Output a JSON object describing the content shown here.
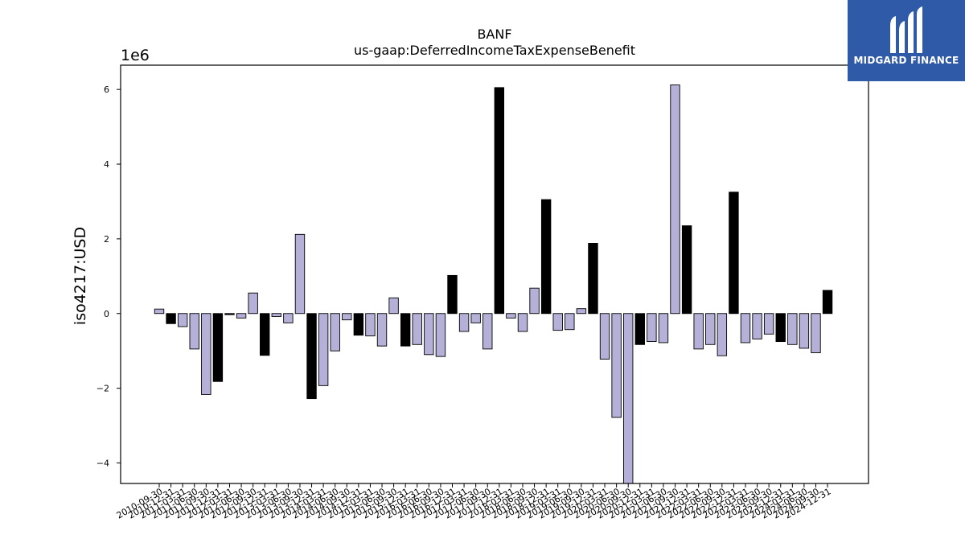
{
  "logo": {
    "text": "MIDGARD FINANCE"
  },
  "chart_data": {
    "type": "bar",
    "title": "BANF",
    "subtitle": "us-gaap:DeferredIncomeTaxExpenseBenefit",
    "ylabel": "iso4217:USD",
    "xlabel": "",
    "y_multiplier_label": "1e6",
    "ylim": [
      -4.55,
      6.65
    ],
    "yticks": [
      -4,
      -2,
      0,
      2,
      4,
      6
    ],
    "ytick_labels": [
      "−4",
      "−2",
      "0",
      "2",
      "4",
      "6"
    ],
    "colors": {
      "quarterly": "#b4b0d8",
      "annual": "#000000",
      "edge": "#000000"
    },
    "grid": false,
    "categories": [
      "2010-09-30",
      "2010-12-31",
      "2011-03-31",
      "2011-06-30",
      "2011-09-30",
      "2011-12-31",
      "2012-03-31",
      "2012-06-30",
      "2012-09-30",
      "2012-12-31",
      "2013-03-31",
      "2013-06-30",
      "2013-09-30",
      "2013-12-31",
      "2014-03-31",
      "2014-06-30",
      "2014-09-30",
      "2014-12-31",
      "2015-03-31",
      "2015-06-30",
      "2015-09-30",
      "2015-12-31",
      "2016-03-31",
      "2016-06-30",
      "2016-09-30",
      "2016-12-31",
      "2017-03-31",
      "2017-06-30",
      "2017-09-30",
      "2017-12-31",
      "2018-03-31",
      "2018-06-30",
      "2018-09-30",
      "2018-12-31",
      "2019-03-31",
      "2019-06-30",
      "2019-09-30",
      "2019-12-31",
      "2020-03-31",
      "2020-06-30",
      "2020-09-30",
      "2020-12-31",
      "2021-03-31",
      "2021-06-30",
      "2021-09-30",
      "2021-12-31",
      "2022-03-31",
      "2022-06-30",
      "2022-09-30",
      "2022-12-31",
      "2023-03-31",
      "2023-06-30",
      "2023-09-30",
      "2023-12-31",
      "2024-03-31",
      "2024-06-30",
      "2024-09-30",
      "2024-12-31"
    ],
    "values": [
      0.12,
      -0.27,
      -0.35,
      -0.95,
      -2.17,
      -1.82,
      -0.03,
      -0.12,
      0.55,
      -1.12,
      -0.08,
      -0.25,
      2.12,
      -2.28,
      -1.93,
      -1.0,
      -0.17,
      -0.58,
      -0.6,
      -0.87,
      0.42,
      -0.87,
      -0.83,
      -1.1,
      -1.15,
      1.02,
      -0.48,
      -0.25,
      -0.95,
      6.05,
      -0.12,
      -0.48,
      0.68,
      3.05,
      -0.45,
      -0.43,
      0.13,
      1.88,
      -1.22,
      -2.78,
      -4.55,
      -0.83,
      -0.75,
      -0.78,
      6.12,
      2.35,
      -0.95,
      -0.83,
      -1.13,
      3.25,
      -0.78,
      -0.68,
      -0.55,
      -0.75,
      -0.83,
      -0.93,
      -1.05,
      0.62
    ],
    "kinds": [
      "q",
      "a",
      "q",
      "q",
      "q",
      "a",
      "a",
      "q",
      "q",
      "a",
      "q",
      "q",
      "q",
      "a",
      "q",
      "q",
      "q",
      "a",
      "q",
      "q",
      "q",
      "a",
      "q",
      "q",
      "q",
      "a",
      "q",
      "q",
      "q",
      "a",
      "q",
      "q",
      "q",
      "a",
      "q",
      "q",
      "q",
      "a",
      "q",
      "q",
      "q",
      "a",
      "q",
      "q",
      "q",
      "a",
      "q",
      "q",
      "q",
      "a",
      "q",
      "q",
      "q",
      "a",
      "q",
      "q",
      "q",
      "a"
    ]
  }
}
